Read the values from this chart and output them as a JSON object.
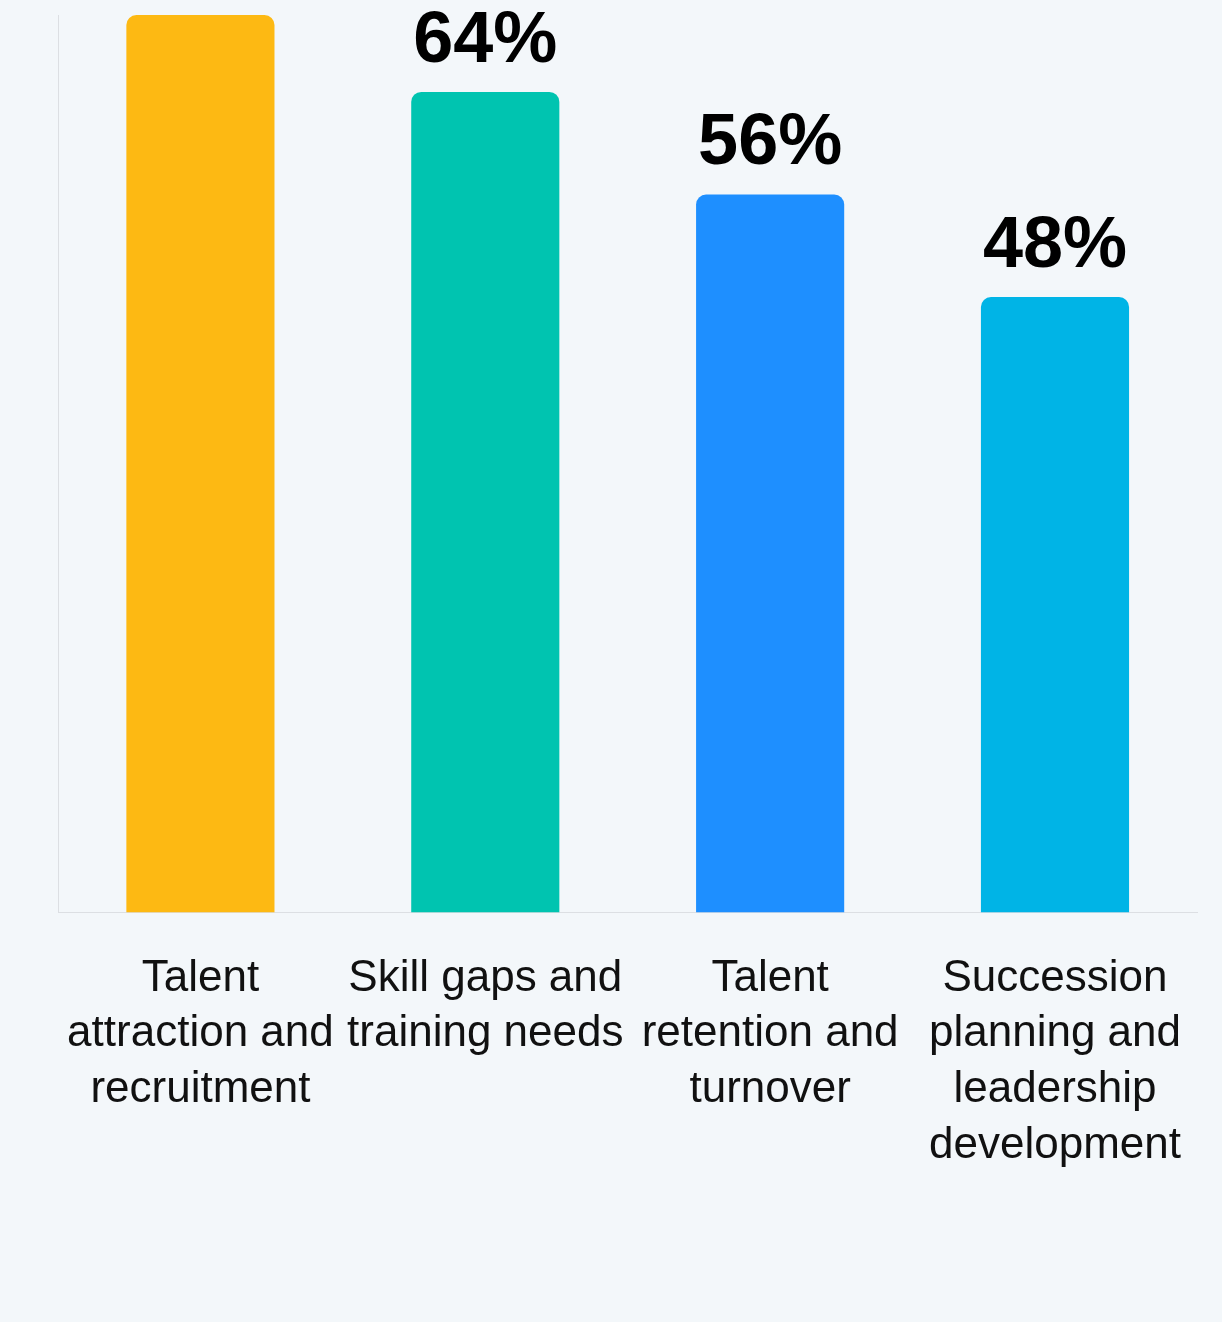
{
  "chart_data": {
    "type": "bar",
    "categories": [
      "Talent attraction and recruitment",
      "Skill gaps and training needs",
      "Talent retention and turnover",
      "Succession planning and leadership development"
    ],
    "values": [
      70,
      64,
      56,
      48
    ],
    "colors": [
      "#fdb913",
      "#00c4b0",
      "#1e8fff",
      "#00b4e6"
    ],
    "value_labels": [
      null,
      "64%",
      "56%",
      "48%"
    ],
    "ylim": [
      0,
      70
    ],
    "tick_labels": "x",
    "grid": false,
    "legend": false
  }
}
